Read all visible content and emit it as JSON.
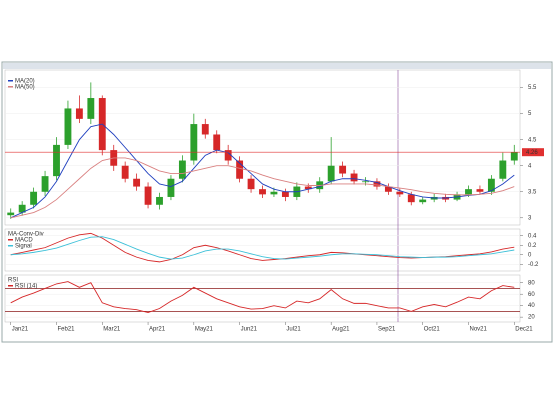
{
  "chart_data": [
    {
      "type": "candlestick",
      "panel": "price",
      "categories": [
        "Jan21",
        null,
        null,
        null,
        "Feb21",
        null,
        null,
        null,
        "Mar21",
        null,
        null,
        null,
        "Apr21",
        null,
        null,
        null,
        "May21",
        null,
        null,
        null,
        "Jun21",
        null,
        null,
        null,
        "Jul21",
        null,
        null,
        null,
        "Aug21",
        null,
        null,
        null,
        "Sep21",
        null,
        null,
        null,
        "Oct21",
        null,
        null,
        null,
        "Nov21",
        null,
        null,
        null,
        "Dec21"
      ],
      "open": [
        3.05,
        3.1,
        3.25,
        3.5,
        3.8,
        4.4,
        5.1,
        4.9,
        5.3,
        4.3,
        4.0,
        3.75,
        3.6,
        3.25,
        3.4,
        3.75,
        4.1,
        4.8,
        4.6,
        4.3,
        4.1,
        3.75,
        3.55,
        3.45,
        3.5,
        3.4,
        3.6,
        3.55,
        3.7,
        4.0,
        3.85,
        3.7,
        3.7,
        3.6,
        3.5,
        3.45,
        3.3,
        3.35,
        3.4,
        3.35,
        3.45,
        3.55,
        3.5,
        3.75,
        4.1
      ],
      "high": [
        3.18,
        3.32,
        3.58,
        3.9,
        4.55,
        5.25,
        5.35,
        5.6,
        5.35,
        4.4,
        4.08,
        3.85,
        3.68,
        3.48,
        3.82,
        4.2,
        5.0,
        4.9,
        4.68,
        4.4,
        4.18,
        3.82,
        3.62,
        3.58,
        3.56,
        3.68,
        3.66,
        3.78,
        4.55,
        4.08,
        3.92,
        3.78,
        3.76,
        3.66,
        3.56,
        3.5,
        3.4,
        3.46,
        3.46,
        3.5,
        3.62,
        3.62,
        3.82,
        4.25,
        4.4
      ],
      "low": [
        2.98,
        3.04,
        3.18,
        3.42,
        3.72,
        4.32,
        4.82,
        4.8,
        4.2,
        3.9,
        3.68,
        3.52,
        3.18,
        3.16,
        3.34,
        3.68,
        4.02,
        4.52,
        4.24,
        4.02,
        3.68,
        3.48,
        3.38,
        3.4,
        3.32,
        3.34,
        3.48,
        3.48,
        3.64,
        3.78,
        3.64,
        3.62,
        3.54,
        3.44,
        3.4,
        3.24,
        3.26,
        3.3,
        3.3,
        3.32,
        3.4,
        3.46,
        3.44,
        3.7,
        4.02
      ],
      "close": [
        3.1,
        3.25,
        3.5,
        3.8,
        4.4,
        5.1,
        4.9,
        5.3,
        4.3,
        4.0,
        3.75,
        3.6,
        3.25,
        3.4,
        3.75,
        4.1,
        4.8,
        4.6,
        4.3,
        4.1,
        3.75,
        3.55,
        3.45,
        3.5,
        3.4,
        3.6,
        3.55,
        3.7,
        4.0,
        3.85,
        3.7,
        3.7,
        3.6,
        3.5,
        3.45,
        3.3,
        3.35,
        3.4,
        3.35,
        3.45,
        3.55,
        3.5,
        3.75,
        4.1,
        4.26
      ],
      "up_color": "#2ca02c",
      "down_color": "#d62728",
      "series": [
        {
          "name": "MA(20)",
          "color": "#1f3fbf",
          "values": [
            3.0,
            3.1,
            3.2,
            3.4,
            3.7,
            4.1,
            4.5,
            4.75,
            4.8,
            4.6,
            4.35,
            4.1,
            3.85,
            3.65,
            3.6,
            3.7,
            3.95,
            4.2,
            4.3,
            4.25,
            4.05,
            3.85,
            3.65,
            3.55,
            3.5,
            3.5,
            3.55,
            3.6,
            3.7,
            3.75,
            3.75,
            3.72,
            3.68,
            3.6,
            3.52,
            3.45,
            3.4,
            3.38,
            3.38,
            3.4,
            3.43,
            3.45,
            3.52,
            3.65,
            3.82
          ]
        },
        {
          "name": "MA(50)",
          "color": "#d98080",
          "values": [
            3.0,
            3.05,
            3.1,
            3.2,
            3.35,
            3.55,
            3.75,
            3.95,
            4.1,
            4.15,
            4.15,
            4.1,
            4.0,
            3.9,
            3.85,
            3.85,
            3.9,
            3.95,
            4.0,
            4.0,
            3.95,
            3.9,
            3.82,
            3.75,
            3.7,
            3.65,
            3.62,
            3.62,
            3.65,
            3.65,
            3.65,
            3.65,
            3.63,
            3.6,
            3.57,
            3.54,
            3.5,
            3.47,
            3.45,
            3.44,
            3.44,
            3.45,
            3.47,
            3.52,
            3.6
          ]
        }
      ],
      "last_value": 4.26,
      "ylim": [
        2.9,
        5.8
      ],
      "yticks": [
        3,
        3.5,
        4,
        4.5,
        5,
        5.5
      ]
    },
    {
      "type": "line",
      "panel": "macd",
      "title": "MA-Conv-Div",
      "series": [
        {
          "name": "MACD",
          "color": "#d62728",
          "values": [
            0.0,
            0.05,
            0.1,
            0.15,
            0.25,
            0.35,
            0.42,
            0.45,
            0.35,
            0.2,
            0.05,
            -0.05,
            -0.12,
            -0.15,
            -0.1,
            0.0,
            0.15,
            0.2,
            0.15,
            0.08,
            0.0,
            -0.08,
            -0.12,
            -0.1,
            -0.08,
            -0.05,
            -0.02,
            0.0,
            0.05,
            0.04,
            0.02,
            0.0,
            -0.02,
            -0.04,
            -0.06,
            -0.07,
            -0.06,
            -0.05,
            -0.04,
            -0.02,
            0.0,
            0.02,
            0.06,
            0.12,
            0.16
          ]
        },
        {
          "name": "Signal",
          "color": "#3cc0d8",
          "values": [
            0.0,
            0.02,
            0.05,
            0.09,
            0.14,
            0.22,
            0.3,
            0.37,
            0.38,
            0.32,
            0.22,
            0.12,
            0.03,
            -0.05,
            -0.09,
            -0.07,
            0.0,
            0.08,
            0.12,
            0.12,
            0.08,
            0.02,
            -0.04,
            -0.08,
            -0.09,
            -0.07,
            -0.05,
            -0.03,
            0.0,
            0.02,
            0.02,
            0.01,
            0.0,
            -0.02,
            -0.04,
            -0.05,
            -0.06,
            -0.05,
            -0.05,
            -0.04,
            -0.02,
            0.0,
            0.02,
            0.06,
            0.1
          ]
        }
      ],
      "ylim": [
        -0.3,
        0.5
      ],
      "yticks": [
        -0.2,
        0,
        0.2,
        0.4
      ]
    },
    {
      "type": "line",
      "panel": "rsi",
      "title": "RSI",
      "series": [
        {
          "name": "RSI (14)",
          "color": "#d62728",
          "values": [
            45,
            55,
            62,
            70,
            78,
            82,
            72,
            80,
            45,
            38,
            35,
            33,
            28,
            35,
            48,
            58,
            72,
            62,
            52,
            45,
            38,
            34,
            35,
            40,
            36,
            48,
            45,
            52,
            68,
            52,
            44,
            44,
            40,
            36,
            36,
            30,
            38,
            42,
            38,
            46,
            55,
            52,
            66,
            75,
            72
          ]
        }
      ],
      "levels": [
        30,
        70
      ],
      "ylim": [
        15,
        90
      ],
      "yticks": [
        20,
        40,
        60,
        80
      ]
    }
  ]
}
